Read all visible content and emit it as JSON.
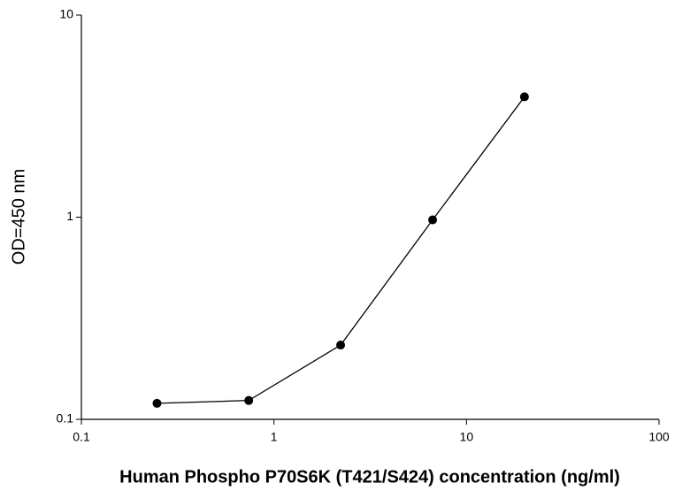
{
  "chart_data": {
    "type": "line",
    "xlabel": "Human Phospho P70S6K (T421/S424) concentration (ng/ml)",
    "ylabel": "OD=450 nm",
    "x": [
      0.247,
      0.74,
      2.22,
      6.67,
      20
    ],
    "series": [
      {
        "name": "OD",
        "color": "#000000",
        "values": [
          0.12,
          0.124,
          0.233,
          0.97,
          3.94
        ]
      }
    ],
    "xlim": [
      0.1,
      100
    ],
    "ylim": [
      0.1,
      10
    ],
    "xticks": [
      0.1,
      1,
      10,
      100
    ],
    "yticks": [
      0.1,
      1,
      10
    ],
    "xscale": "log",
    "yscale": "log",
    "grid": false
  }
}
